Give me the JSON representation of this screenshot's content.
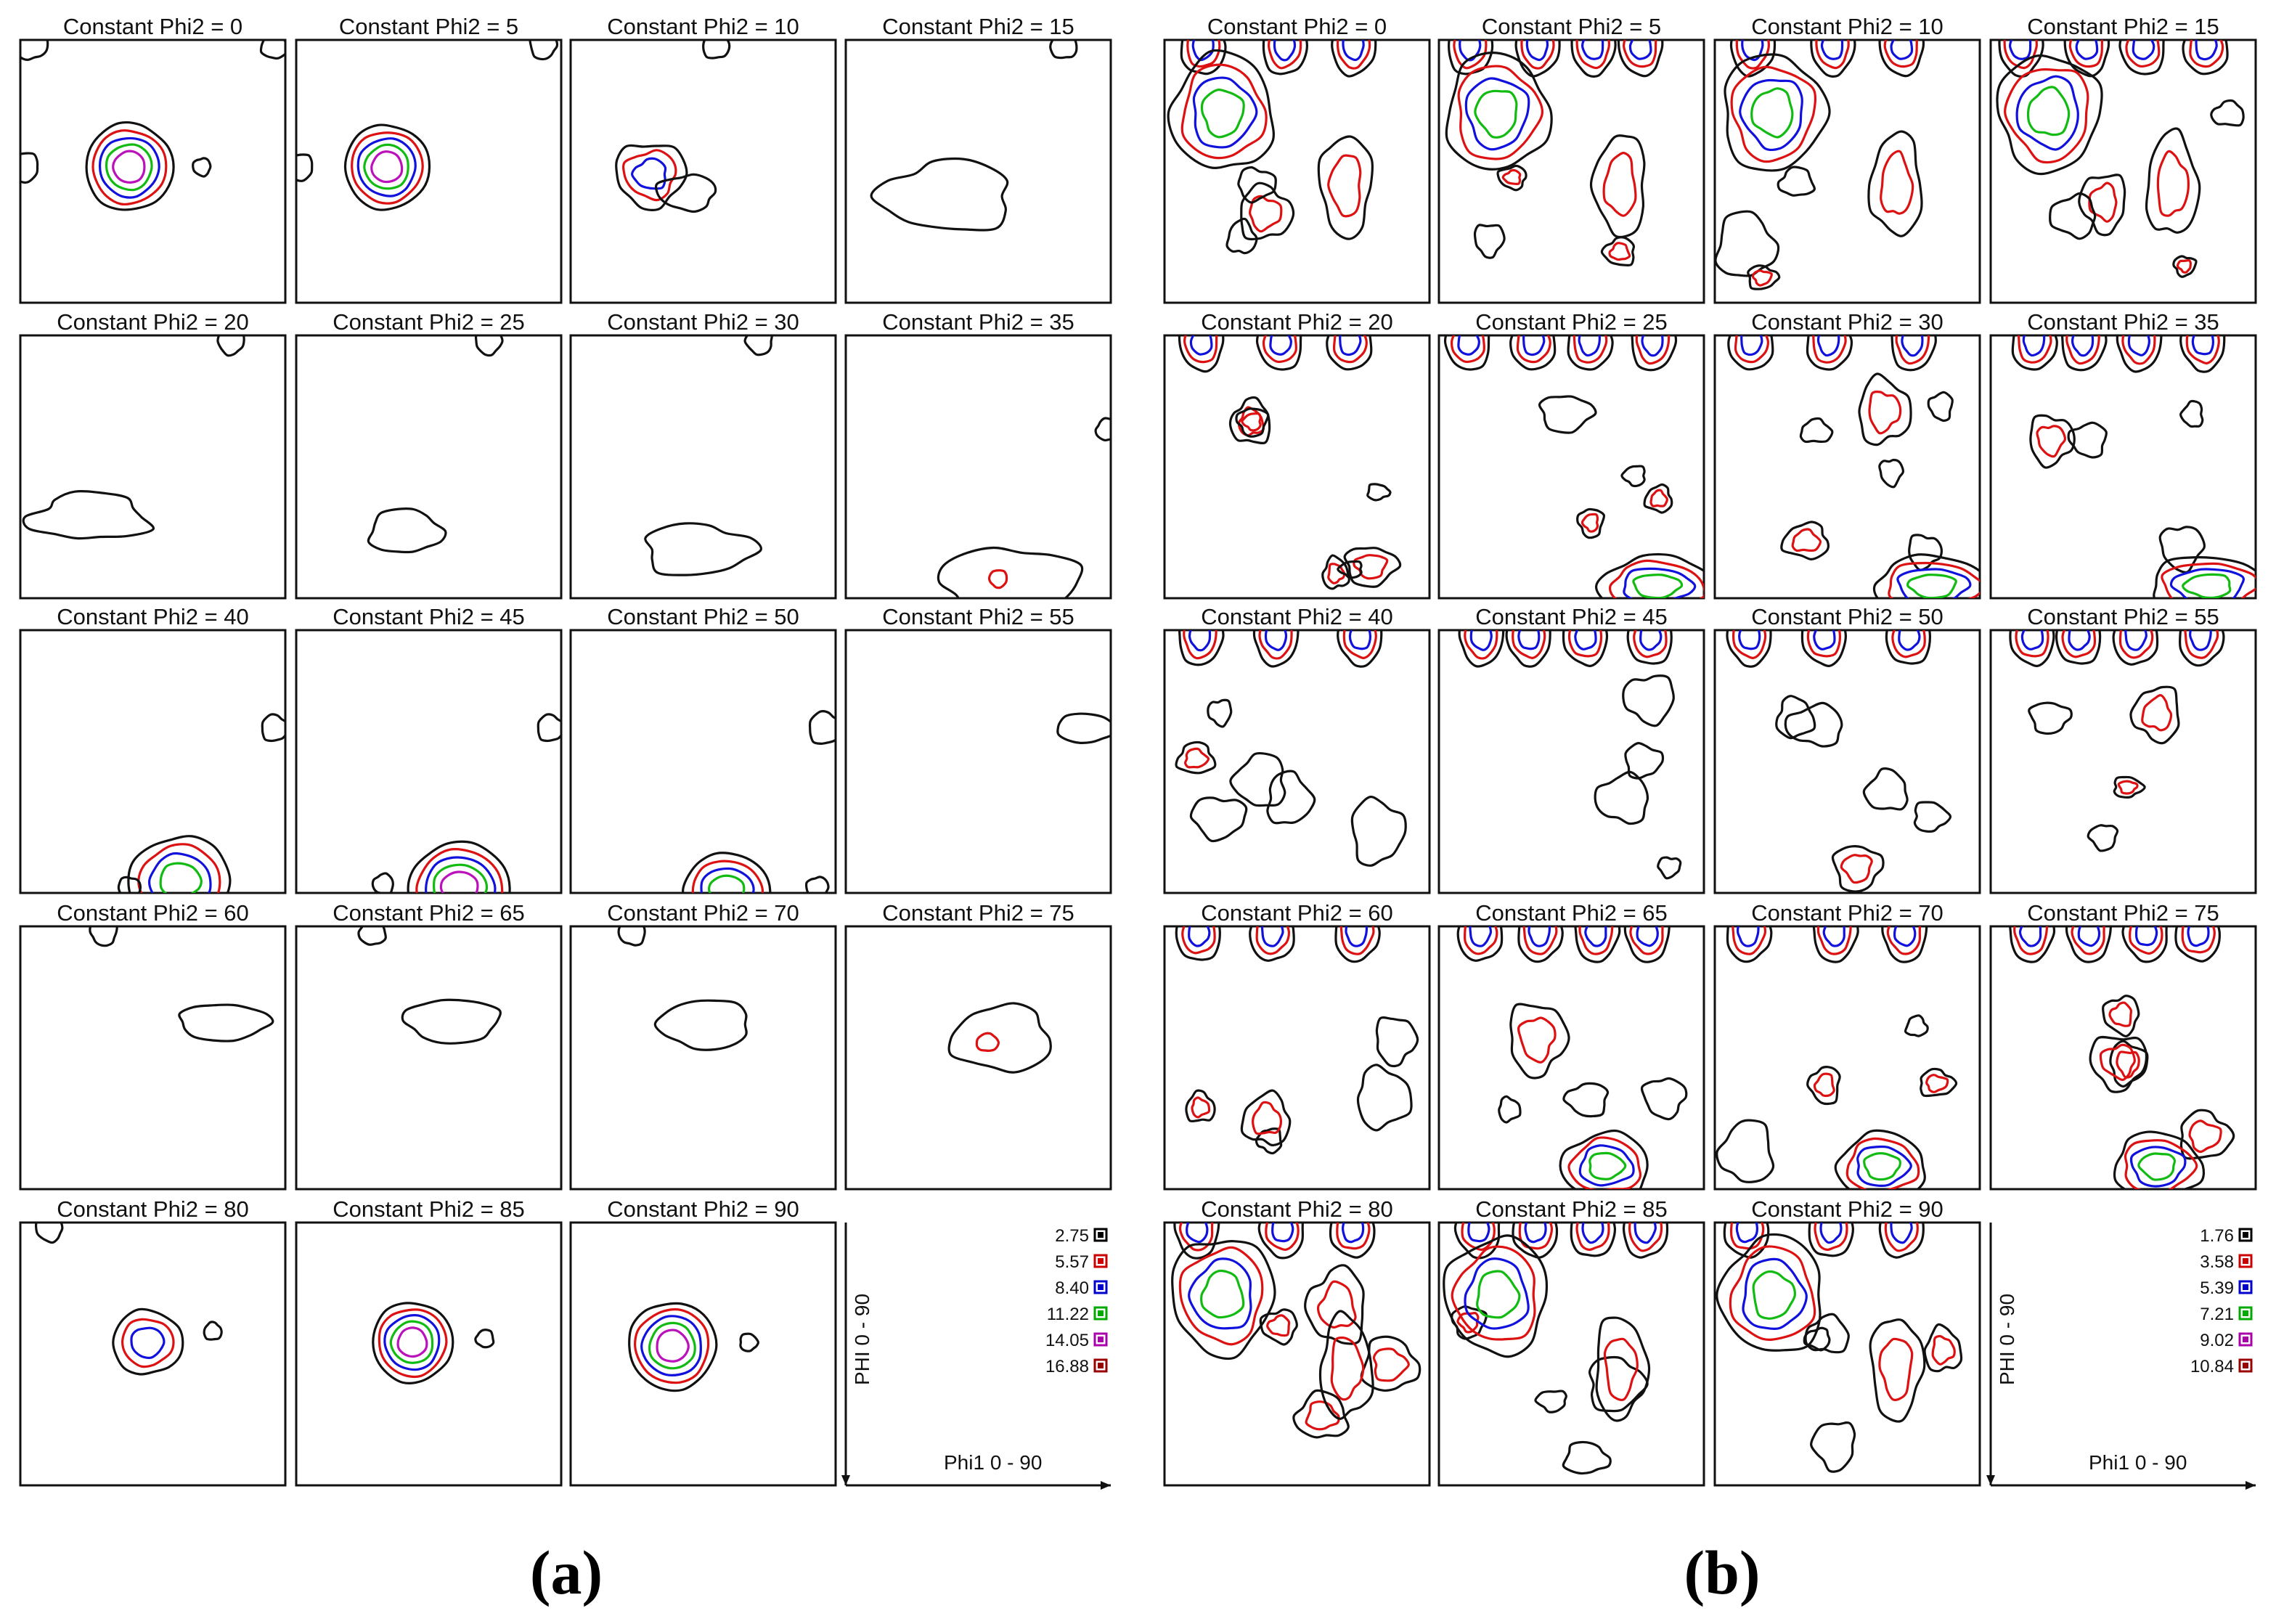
{
  "figure": {
    "parts": [
      {
        "id": "a",
        "caption": "(a)",
        "panels": [
          {
            "title": "Constant Phi2 = 0"
          },
          {
            "title": "Constant Phi2 = 5"
          },
          {
            "title": "Constant Phi2 = 10"
          },
          {
            "title": "Constant Phi2 = 15"
          },
          {
            "title": "Constant Phi2 = 20"
          },
          {
            "title": "Constant Phi2 = 25"
          },
          {
            "title": "Constant Phi2 = 30"
          },
          {
            "title": "Constant Phi2 = 35"
          },
          {
            "title": "Constant Phi2 = 40"
          },
          {
            "title": "Constant Phi2 = 45"
          },
          {
            "title": "Constant Phi2 = 50"
          },
          {
            "title": "Constant Phi2 = 55"
          },
          {
            "title": "Constant Phi2 = 60"
          },
          {
            "title": "Constant Phi2 = 65"
          },
          {
            "title": "Constant Phi2 = 70"
          },
          {
            "title": "Constant Phi2 = 75"
          },
          {
            "title": "Constant Phi2 = 80"
          },
          {
            "title": "Constant Phi2 = 85"
          },
          {
            "title": "Constant Phi2 = 90"
          }
        ],
        "legend": [
          {
            "value": "2.75",
            "color": "#000000"
          },
          {
            "value": "5.57",
            "color": "#cc0000"
          },
          {
            "value": "8.40",
            "color": "#0000cc"
          },
          {
            "value": "11.22",
            "color": "#00aa00"
          },
          {
            "value": "14.05",
            "color": "#aa00aa"
          },
          {
            "value": "16.88",
            "color": "#990000"
          }
        ],
        "axis_phi": "PHI  0 - 90",
        "axis_phi1": "Phi1  0 - 90"
      },
      {
        "id": "b",
        "caption": "(b)",
        "panels": [
          {
            "title": "Constant Phi2 = 0"
          },
          {
            "title": "Constant Phi2 = 5"
          },
          {
            "title": "Constant Phi2 = 10"
          },
          {
            "title": "Constant Phi2 = 15"
          },
          {
            "title": "Constant Phi2 = 20"
          },
          {
            "title": "Constant Phi2 = 25"
          },
          {
            "title": "Constant Phi2 = 30"
          },
          {
            "title": "Constant Phi2 = 35"
          },
          {
            "title": "Constant Phi2 = 40"
          },
          {
            "title": "Constant Phi2 = 45"
          },
          {
            "title": "Constant Phi2 = 50"
          },
          {
            "title": "Constant Phi2 = 55"
          },
          {
            "title": "Constant Phi2 = 60"
          },
          {
            "title": "Constant Phi2 = 65"
          },
          {
            "title": "Constant Phi2 = 70"
          },
          {
            "title": "Constant Phi2 = 75"
          },
          {
            "title": "Constant Phi2 = 80"
          },
          {
            "title": "Constant Phi2 = 85"
          },
          {
            "title": "Constant Phi2 = 90"
          }
        ],
        "legend": [
          {
            "value": "1.76",
            "color": "#000000"
          },
          {
            "value": "3.58",
            "color": "#cc0000"
          },
          {
            "value": "5.39",
            "color": "#0000cc"
          },
          {
            "value": "7.21",
            "color": "#00aa00"
          },
          {
            "value": "9.02",
            "color": "#aa00aa"
          },
          {
            "value": "10.84",
            "color": "#990000"
          }
        ],
        "axis_phi": "PHI  0 - 90",
        "axis_phi1": "Phi1  0 - 90"
      }
    ]
  }
}
